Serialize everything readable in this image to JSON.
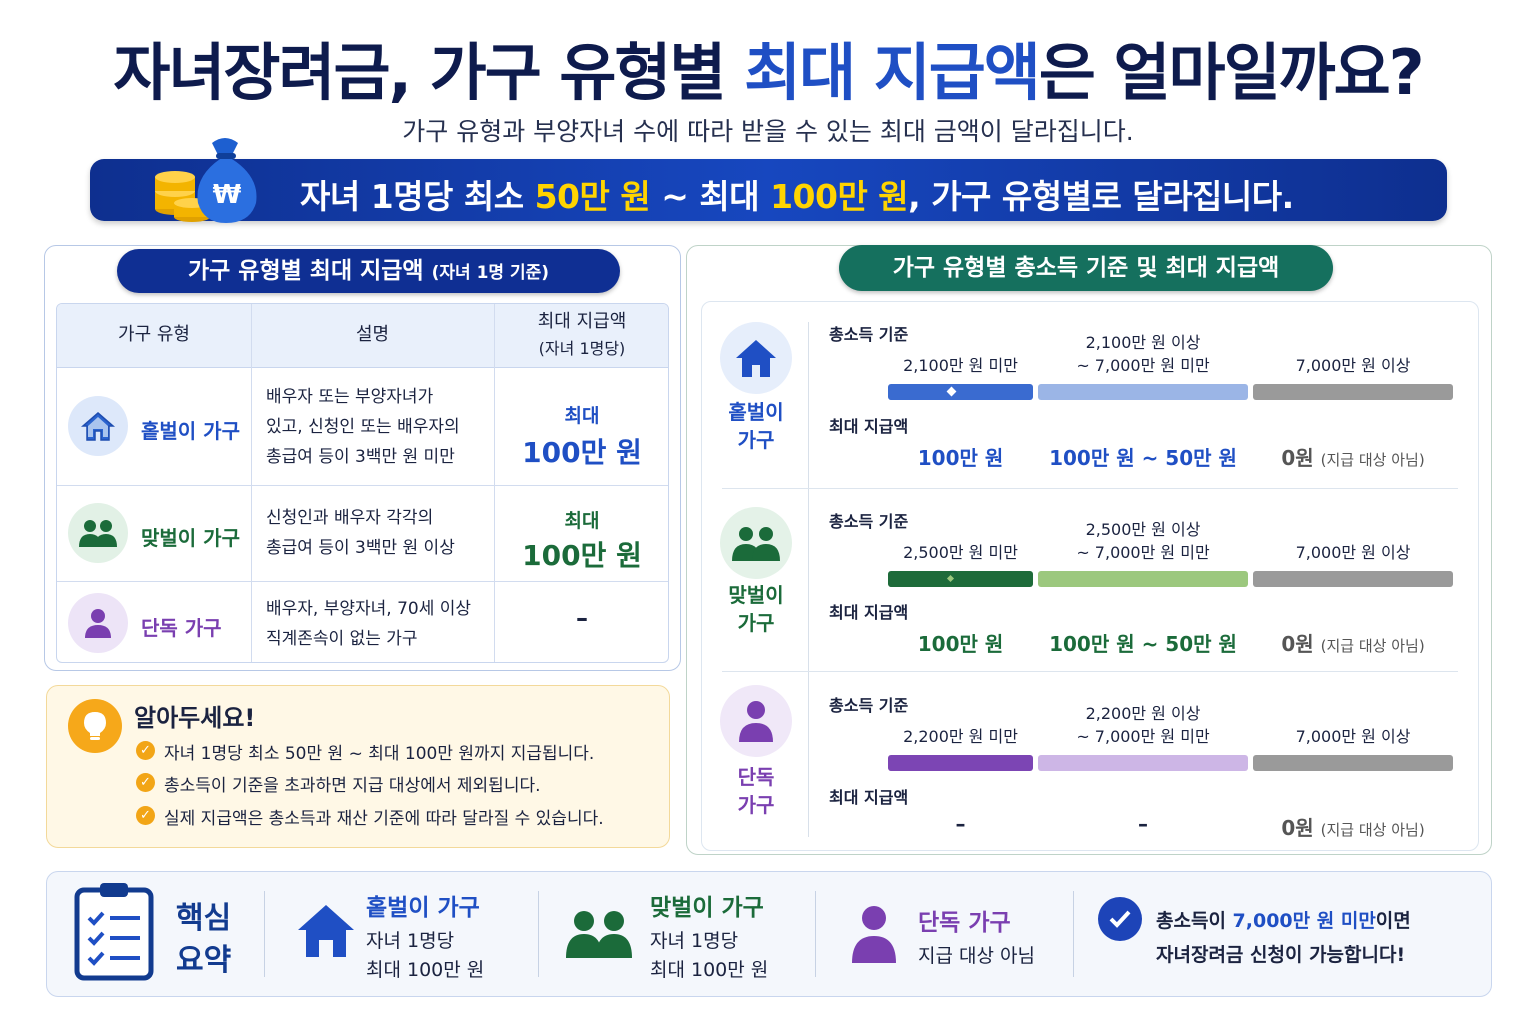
{
  "header": {
    "title_part1": "자녀장려금, 가구 유형별 ",
    "title_highlight": "최대 지급액",
    "title_part2": "은 얼마일까요?",
    "subtitle": "가구 유형과 부양자녀 수에 따라 받을 수 있는 최대 금액이 달라집니다."
  },
  "banner": {
    "p1": "자녀 1명당 최소 ",
    "min": "50만 원",
    "p2": " ~ 최대 ",
    "max": "100만 원",
    "p3": ", 가구 유형별로 달라집니다.",
    "currency_symbol": "₩"
  },
  "left": {
    "pill_title": "가구 유형별 최대 지급액 ",
    "pill_note": "(자녀 1명 기준)",
    "headers": {
      "type": "가구 유형",
      "desc": "설명",
      "amount1": "최대 지급액",
      "amount2": "(자녀 1명당)"
    },
    "rows": [
      {
        "type": "홑벌이 가구",
        "icon": "house-icon",
        "color": "#1f4fc4",
        "desc1": "배우자 또는 부양자녀가",
        "desc2": "있고, 신청인 또는 배우자의",
        "desc3": "총급여 등이 3백만 원 미만",
        "amt_small": "최대",
        "amt_big": "100만 원"
      },
      {
        "type": "맞벌이 가구",
        "icon": "couple-icon",
        "color": "#1b6b3a",
        "desc1": "신청인과 배우자 각각의",
        "desc2": "총급여 등이 3백만 원 이상",
        "amt_small": "최대",
        "amt_big": "100만 원"
      },
      {
        "type": "단독 가구",
        "icon": "person-icon",
        "color": "#7a3fb0",
        "desc1": "배우자, 부양자녀, 70세 이상",
        "desc2": "직계존속이 없는 가구",
        "amt_dash": "–"
      }
    ]
  },
  "tip": {
    "title": "알아두세요!",
    "items": [
      "자녀 1명당 최소 50만 원 ~ 최대 100만 원까지 지급됩니다.",
      "총소득이 기준을 초과하면 지급 대상에서 제외됩니다.",
      "실제 지급액은 총소득과 재산 기준에 따라 달라질 수 있습니다."
    ]
  },
  "right": {
    "pill_title": "가구 유형별 총소득 기준 및 최대 지급액",
    "label_income": "총소득 기준",
    "label_max": "최대 지급액",
    "over": "7,000만 원 이상",
    "zero": "0원",
    "zero_note": "(지급 대상 아님)",
    "rows": [
      {
        "type1": "홑벌이",
        "type2": "가구",
        "color": "#1f4fc4",
        "t1": "2,100만 원 미만",
        "t2a": "2,100만 원 이상",
        "t2b": "~ 7,000만 원 미만",
        "a1": "100만 원",
        "a2": "100만 원 ~ 50만 원",
        "bar1": "#3a6bd0",
        "bar2": "#9bb5e6"
      },
      {
        "type1": "맞벌이",
        "type2": "가구",
        "color": "#1b6b3a",
        "t1": "2,500만 원 미만",
        "t2a": "2,500만 원 이상",
        "t2b": "~ 7,000만 원 미만",
        "a1": "100만 원",
        "a2": "100만 원 ~ 50만 원",
        "bar1": "#1e6b3a",
        "bar2": "#9cc87e"
      },
      {
        "type1": "단독",
        "type2": "가구",
        "color": "#7a3fb0",
        "t1": "2,200만 원 미만",
        "t2a": "2,200만 원 이상",
        "t2b": "~ 7,000만 원 미만",
        "a1": "–",
        "a2": "–",
        "bar1": "#7c45b4",
        "bar2": "#cdb6e6"
      }
    ]
  },
  "summary": {
    "title1": "핵심",
    "title2": "요약",
    "s1_title": "홑벌이 가구",
    "s1_l1": "자녀 1명당",
    "s1_l2": "최대 100만 원",
    "s2_title": "맞벌이 가구",
    "s2_l1": "자녀 1명당",
    "s2_l2": "최대 100만 원",
    "s3_title": "단독 가구",
    "s3_l1": "지급 대상 아님",
    "final_p1": "총소득이 ",
    "final_hl": "7,000만 원 미만",
    "final_p2": "이면",
    "final_l2": "자녀장려금 신청이 가능합니다!"
  }
}
